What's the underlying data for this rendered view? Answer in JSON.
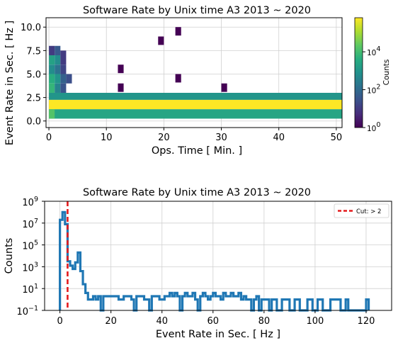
{
  "chart_data": [
    {
      "type": "heatmap",
      "title": "Software Rate by Unix time A3 2013 ~ 2020",
      "xlabel": "Ops. Time [ Min. ]",
      "ylabel": "Event Rate in Sec. [ Hz ]",
      "xlim": [
        -0.5,
        51
      ],
      "ylim": [
        -0.7,
        11.0
      ],
      "xticks": [
        0,
        10,
        20,
        30,
        40,
        50
      ],
      "yticks": [
        0.0,
        2.5,
        5.0,
        7.5,
        10.0
      ],
      "colorbar": {
        "label": "Counts",
        "scale": "log",
        "min_exponent": 0,
        "max_exponent": 5.8,
        "tick_exponents": [
          0,
          2,
          4
        ],
        "colormap": "viridis"
      },
      "cells": [
        {
          "x": 0,
          "x_end": 51,
          "y": 2.25,
          "y_end": 3.0,
          "log10": 3.0
        },
        {
          "x": 0,
          "x_end": 51,
          "y": 1.25,
          "y_end": 2.25,
          "log10": 5.8
        },
        {
          "x": 0,
          "x_end": 51,
          "y": 0.25,
          "y_end": 1.25,
          "log10": 3.4
        },
        {
          "x": 0,
          "x_end": 1,
          "y": 0.25,
          "y_end": 1.25,
          "log10": 4.2
        },
        {
          "x": 0,
          "x_end": 1,
          "y": 7.0,
          "y_end": 8.0,
          "log10": 1.0
        },
        {
          "x": 1,
          "x_end": 2,
          "y": 7.0,
          "y_end": 8.0,
          "log10": 1.6
        },
        {
          "x": 0,
          "x_end": 1,
          "y": 6.0,
          "y_end": 7.0,
          "log10": 3.3
        },
        {
          "x": 1,
          "x_end": 2,
          "y": 6.0,
          "y_end": 7.0,
          "log10": 2.8
        },
        {
          "x": 2,
          "x_end": 3,
          "y": 6.0,
          "y_end": 7.5,
          "log10": 1.0
        },
        {
          "x": 0,
          "x_end": 1,
          "y": 5.0,
          "y_end": 6.0,
          "log10": 2.8
        },
        {
          "x": 1,
          "x_end": 2,
          "y": 5.0,
          "y_end": 6.0,
          "log10": 2.2
        },
        {
          "x": 2,
          "x_end": 3,
          "y": 5.0,
          "y_end": 6.0,
          "log10": 1.2
        },
        {
          "x": 0,
          "x_end": 1,
          "y": 4.0,
          "y_end": 5.0,
          "log10": 3.6
        },
        {
          "x": 1,
          "x_end": 2,
          "y": 4.0,
          "y_end": 5.0,
          "log10": 3.0
        },
        {
          "x": 2,
          "x_end": 3,
          "y": 4.0,
          "y_end": 5.0,
          "log10": 1.8
        },
        {
          "x": 3,
          "x_end": 4,
          "y": 4.0,
          "y_end": 5.0,
          "log10": 1.4
        },
        {
          "x": 0,
          "x_end": 1,
          "y": 3.0,
          "y_end": 4.0,
          "log10": 3.8
        },
        {
          "x": 1,
          "x_end": 2,
          "y": 3.0,
          "y_end": 4.0,
          "log10": 2.6
        },
        {
          "x": 2,
          "x_end": 3,
          "y": 3.0,
          "y_end": 4.0,
          "log10": 1.5
        },
        {
          "x": 12,
          "x_end": 13,
          "y": 5.1,
          "y_end": 6.0,
          "log10": 0.0
        },
        {
          "x": 12,
          "x_end": 13,
          "y": 3.1,
          "y_end": 4.0,
          "log10": 0.0
        },
        {
          "x": 19,
          "x_end": 20,
          "y": 8.1,
          "y_end": 9.0,
          "log10": 0.0
        },
        {
          "x": 22,
          "x_end": 23,
          "y": 9.1,
          "y_end": 10.0,
          "log10": 0.0
        },
        {
          "x": 22,
          "x_end": 23,
          "y": 4.1,
          "y_end": 5.0,
          "log10": 0.0
        },
        {
          "x": 30,
          "x_end": 31,
          "y": 3.1,
          "y_end": 4.0,
          "log10": 0.0
        }
      ]
    },
    {
      "type": "histogram",
      "title": "Software Rate by Unix time A3 2013 ~ 2020",
      "xlabel": "Event Rate in Sec. [ Hz ]",
      "ylabel": "Counts",
      "xlim": [
        -6,
        130
      ],
      "yscale": "log",
      "ylim_exponents": [
        -1,
        9
      ],
      "xticks": [
        0,
        20,
        40,
        60,
        80,
        100,
        120
      ],
      "ytick_exponents": [
        -1,
        1,
        3,
        5,
        7,
        9
      ],
      "bin_width": 1,
      "bin_start": 0,
      "counts_log10": [
        7.3,
        8.0,
        6.9,
        3.5,
        3.1,
        2.8,
        3.4,
        4.3,
        2.6,
        1.4,
        0.6,
        0.0,
        0.0,
        0.3,
        0.0,
        0.3,
        -1,
        0.3,
        0.3,
        0.3,
        0.3,
        0.3,
        0.3,
        0.0,
        0.0,
        0.3,
        0.3,
        0.3,
        0.0,
        -1,
        0.3,
        0.3,
        0.3,
        0.0,
        0.0,
        -1,
        0.3,
        0.3,
        0.3,
        0.0,
        0.0,
        0.3,
        0.3,
        0.6,
        0.3,
        0.6,
        0.3,
        -1,
        0.3,
        0.6,
        0.3,
        0.3,
        0.6,
        0.0,
        -1,
        0.3,
        0.6,
        0.3,
        0.0,
        0.3,
        0.6,
        0.3,
        0.3,
        0.0,
        0.6,
        0.3,
        0.3,
        0.6,
        0.3,
        0.3,
        0.6,
        0.0,
        0.3,
        0.0,
        0.0,
        -1,
        0.0,
        0.3,
        -1,
        0.0,
        0.0,
        0.0,
        -1,
        0.0,
        0.0,
        -1,
        -1,
        0.0,
        0.0,
        0.0,
        -1,
        -1,
        0.0,
        0.0,
        -1,
        -1,
        -1,
        0.0,
        0.0,
        -1,
        -1,
        0.0,
        0.0,
        -1,
        -1,
        -1,
        0.0,
        0.0,
        0.0,
        0.0,
        -1,
        -1,
        0.0,
        -1,
        -1,
        -1,
        -1,
        -1,
        -1,
        -1,
        0.0
      ],
      "cut_line": {
        "x": 3,
        "label": "Cut: > 2",
        "color": "#e41a1c"
      },
      "bar_color": "#1f77b4",
      "legend_position": "top-right"
    }
  ]
}
